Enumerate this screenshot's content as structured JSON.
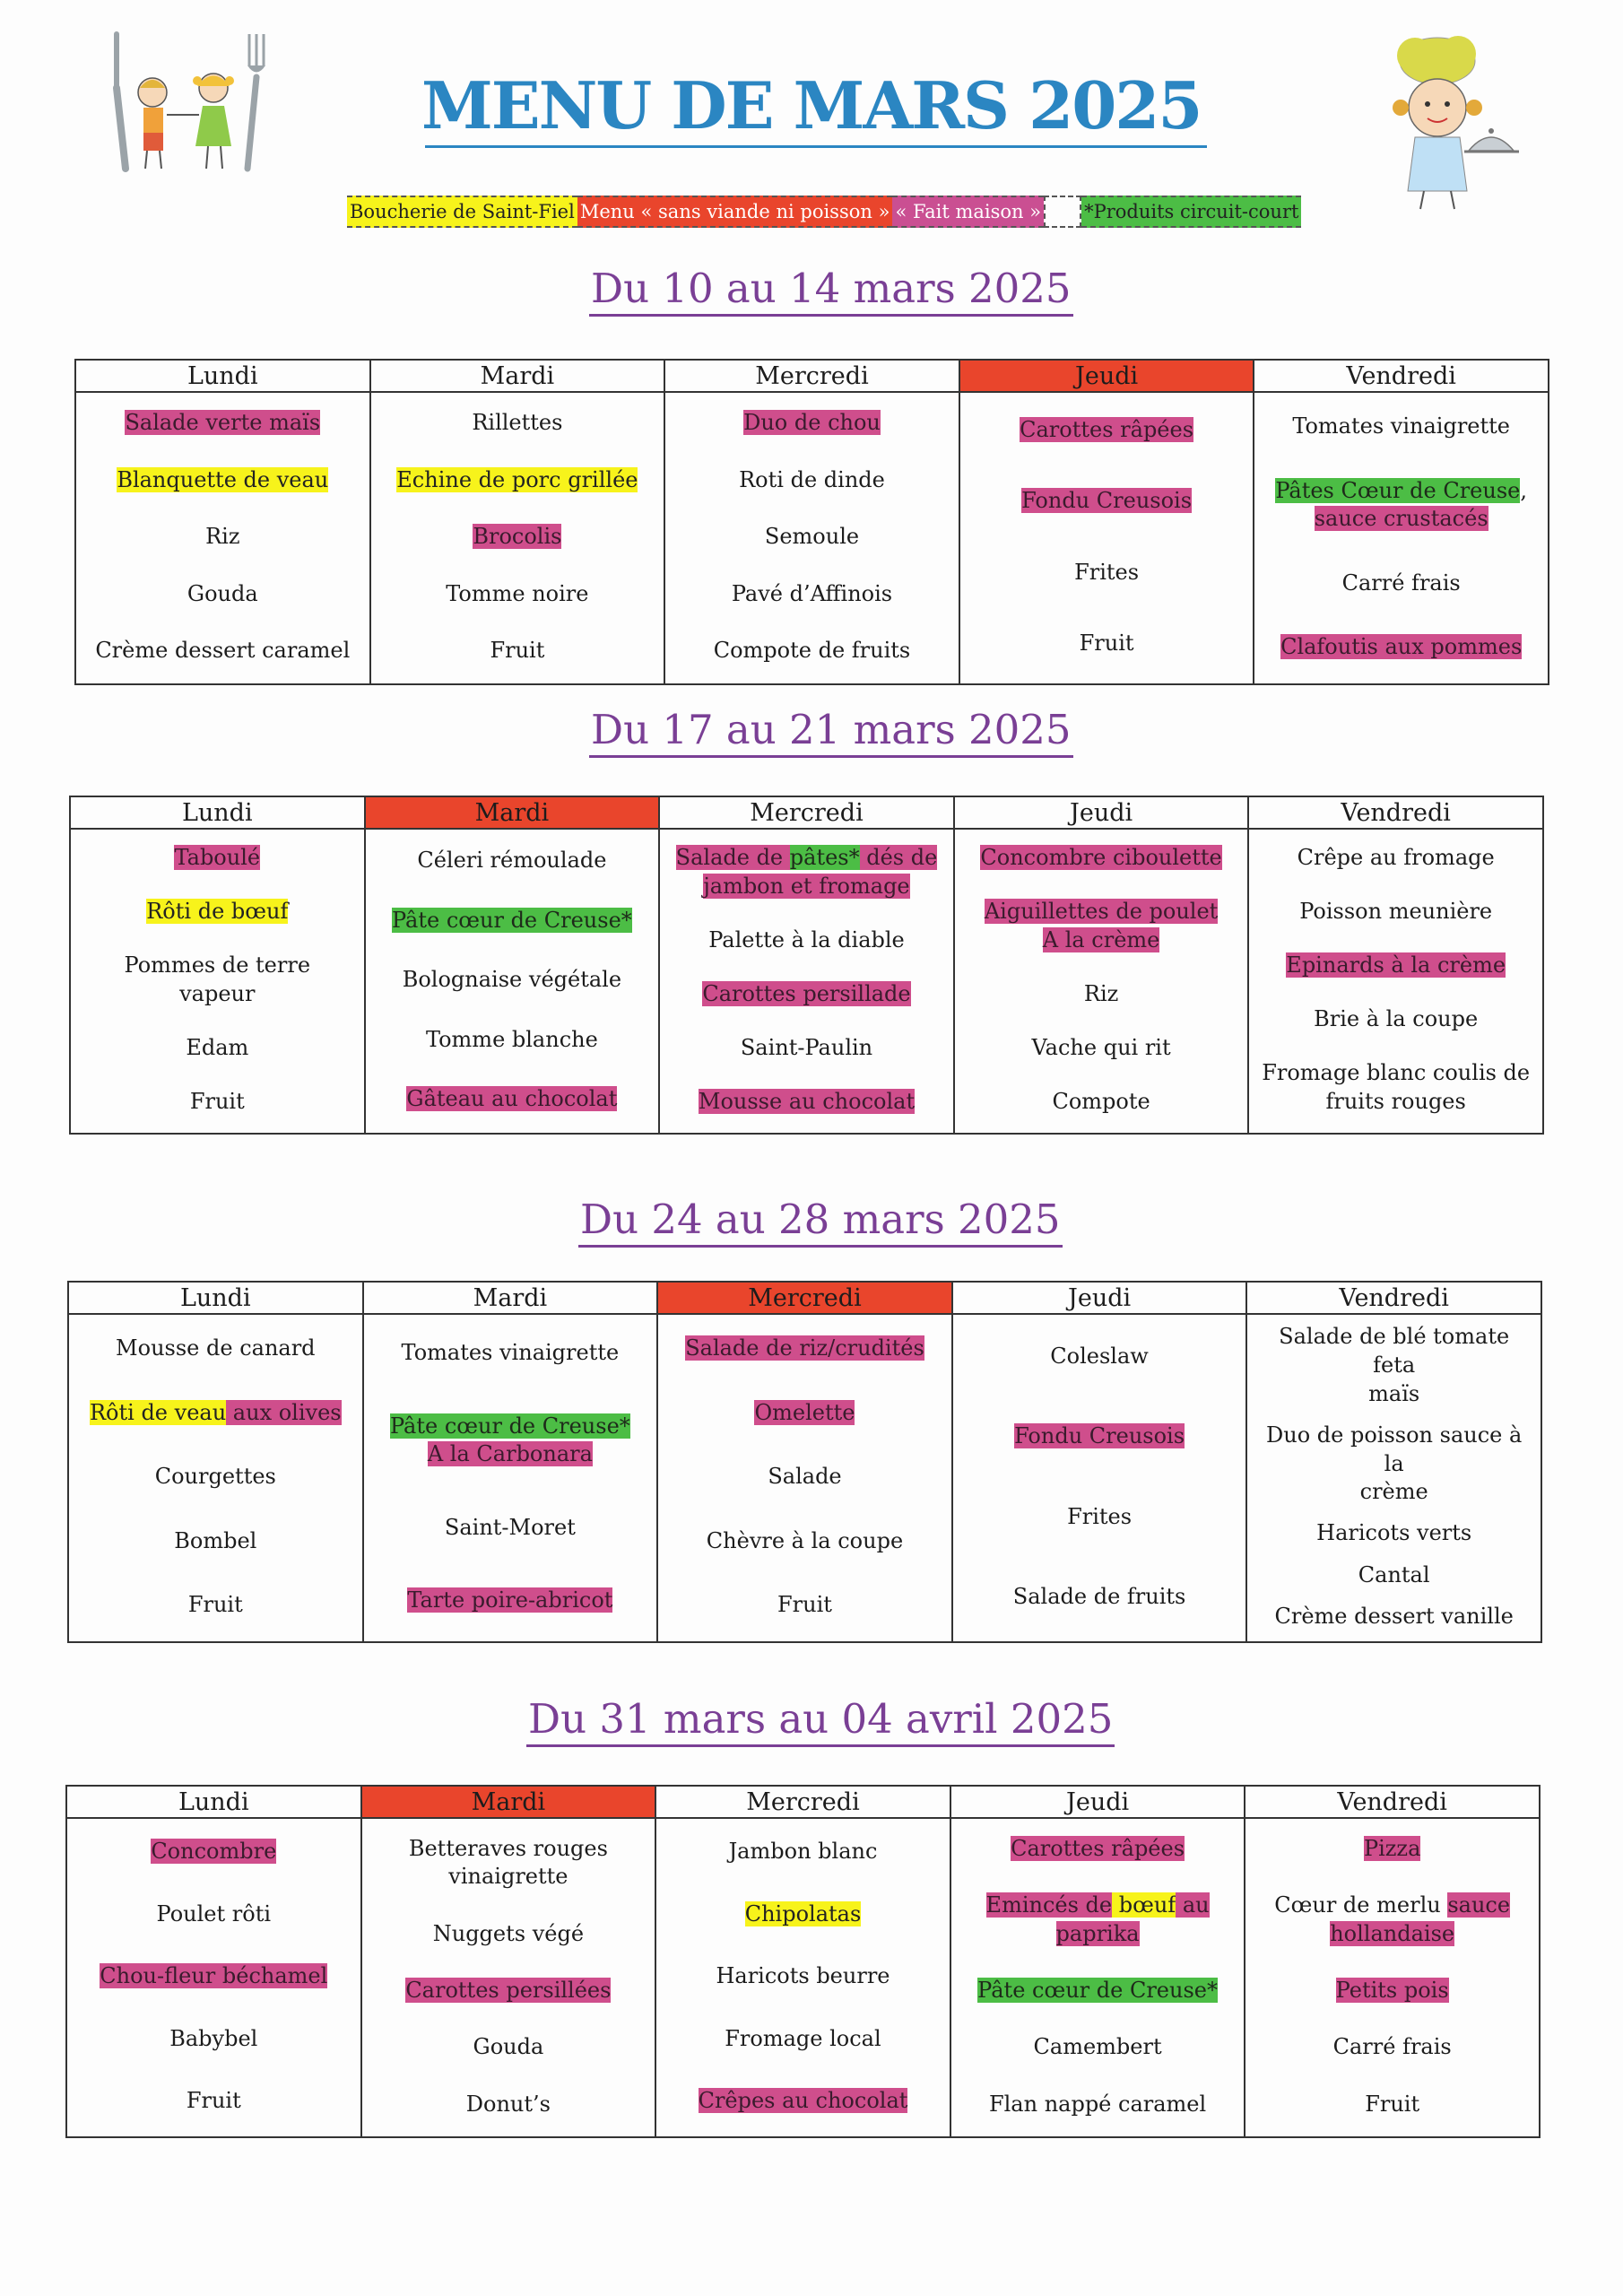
{
  "title": "MENU DE MARS 2025",
  "legend": {
    "yellow": "Boucherie de Saint-Fiel",
    "red": "Menu « sans viande ni poisson »",
    "pink": "« Fait maison »",
    "green": "*Produits circuit-court"
  },
  "colors": {
    "title": "#2b86c2",
    "week_title": "#7a3f95",
    "yellow": "#f7f31b",
    "red": "#e9452c",
    "pink": "#cf4e8c",
    "green": "#4cbd45"
  },
  "illustrations": {
    "left": "children-with-fork-drawing",
    "right": "chef-child-with-cloche-drawing"
  },
  "weeks": [
    {
      "title": "Du 10 au 14 mars 2025",
      "days": [
        {
          "name": "Lundi",
          "veggie": false,
          "items": [
            [
              {
                "t": "Salade verte maïs",
                "h": "pink"
              }
            ],
            [
              {
                "t": "Blanquette de veau",
                "h": "yellow"
              }
            ],
            [
              {
                "t": "Riz"
              }
            ],
            [
              {
                "t": "Gouda"
              }
            ],
            [
              {
                "t": "Crème dessert caramel"
              }
            ]
          ]
        },
        {
          "name": "Mardi",
          "veggie": false,
          "items": [
            [
              {
                "t": "Rillettes"
              }
            ],
            [
              {
                "t": "Echine de porc grillée",
                "h": "yellow"
              }
            ],
            [
              {
                "t": "Brocolis",
                "h": "pink"
              }
            ],
            [
              {
                "t": "Tomme noire"
              }
            ],
            [
              {
                "t": "Fruit"
              }
            ]
          ]
        },
        {
          "name": "Mercredi",
          "veggie": false,
          "items": [
            [
              {
                "t": "Duo de chou",
                "h": "pink"
              }
            ],
            [
              {
                "t": "Roti de dinde"
              }
            ],
            [
              {
                "t": "Semoule"
              }
            ],
            [
              {
                "t": "Pavé d’Affinois"
              }
            ],
            [
              {
                "t": "Compote de fruits"
              }
            ]
          ]
        },
        {
          "name": "Jeudi",
          "veggie": true,
          "items": [
            [
              {
                "t": "Carottes râpées",
                "h": "pink"
              }
            ],
            [
              {
                "t": "Fondu Creusois",
                "h": "pink"
              }
            ],
            [
              {
                "t": "Frites"
              }
            ],
            [
              {
                "t": "Fruit"
              }
            ]
          ]
        },
        {
          "name": "Vendredi",
          "veggie": false,
          "items": [
            [
              {
                "t": "Tomates vinaigrette"
              }
            ],
            [
              {
                "t": "Pâtes Cœur de Creuse",
                "h": "green"
              },
              {
                "t": ","
              },
              {
                "br": true
              },
              {
                "t": "sauce crustacés",
                "h": "pink"
              }
            ],
            [
              {
                "t": "Carré frais"
              }
            ],
            [
              {
                "t": "Clafoutis aux pommes",
                "h": "pink"
              }
            ]
          ]
        }
      ]
    },
    {
      "title": "Du 17 au 21 mars 2025",
      "days": [
        {
          "name": "Lundi",
          "veggie": false,
          "items": [
            [
              {
                "t": "Taboulé",
                "h": "pink"
              }
            ],
            [
              {
                "t": "Rôti de bœuf",
                "h": "yellow"
              }
            ],
            [
              {
                "t": "Pommes de terre"
              },
              {
                "br": true
              },
              {
                "t": "vapeur"
              }
            ],
            [
              {
                "t": "Edam"
              }
            ],
            [
              {
                "t": "Fruit"
              }
            ]
          ]
        },
        {
          "name": "Mardi",
          "veggie": true,
          "items": [
            [
              {
                "t": "Céleri rémoulade"
              }
            ],
            [
              {
                "t": "Pâte cœur de Creuse*",
                "h": "green"
              }
            ],
            [
              {
                "t": "Bolognaise végétale"
              }
            ],
            [
              {
                "t": "Tomme blanche"
              }
            ],
            [
              {
                "t": "Gâteau au chocolat",
                "h": "pink"
              }
            ]
          ]
        },
        {
          "name": "Mercredi",
          "veggie": false,
          "items": [
            [
              {
                "t": "Salade de ",
                "h": "pink"
              },
              {
                "t": "pâtes*",
                "h": "green"
              },
              {
                "t": " dés de",
                "h": "pink"
              },
              {
                "br": true
              },
              {
                "t": "jambon et fromage",
                "h": "pink"
              }
            ],
            [
              {
                "t": "Palette à la diable"
              }
            ],
            [
              {
                "t": "Carottes persillade",
                "h": "pink"
              }
            ],
            [
              {
                "t": "Saint-Paulin"
              }
            ],
            [
              {
                "t": "Mousse au chocolat",
                "h": "pink"
              }
            ]
          ]
        },
        {
          "name": "Jeudi",
          "veggie": false,
          "items": [
            [
              {
                "t": "Concombre ciboulette",
                "h": "pink"
              }
            ],
            [
              {
                "t": "Aiguillettes de poulet",
                "h": "pink"
              },
              {
                "br": true
              },
              {
                "t": "A la crème",
                "h": "pink"
              }
            ],
            [
              {
                "t": "Riz"
              }
            ],
            [
              {
                "t": "Vache qui rit"
              }
            ],
            [
              {
                "t": "Compote"
              }
            ]
          ]
        },
        {
          "name": "Vendredi",
          "veggie": false,
          "items": [
            [
              {
                "t": "Crêpe au fromage"
              }
            ],
            [
              {
                "t": "Poisson meunière"
              }
            ],
            [
              {
                "t": "Epinards à la crème",
                "h": "pink"
              }
            ],
            [
              {
                "t": "Brie à la coupe"
              }
            ],
            [
              {
                "t": "Fromage blanc coulis de"
              },
              {
                "br": true
              },
              {
                "t": "fruits rouges"
              }
            ]
          ]
        }
      ]
    },
    {
      "title": "Du 24 au 28 mars 2025",
      "days": [
        {
          "name": "Lundi",
          "veggie": false,
          "items": [
            [
              {
                "t": "Mousse de canard"
              }
            ],
            [
              {
                "t": "Rôti de veau",
                "h": "yellow"
              },
              {
                "t": " aux olives",
                "h": "pink"
              }
            ],
            [
              {
                "t": "Courgettes"
              }
            ],
            [
              {
                "t": "Bombel"
              }
            ],
            [
              {
                "t": "Fruit"
              }
            ]
          ]
        },
        {
          "name": "Mardi",
          "veggie": false,
          "items": [
            [
              {
                "t": "Tomates vinaigrette"
              }
            ],
            [
              {
                "t": "Pâte cœur de Creuse*",
                "h": "green"
              },
              {
                "br": true
              },
              {
                "t": "A la Carbonara",
                "h": "pink"
              }
            ],
            [
              {
                "t": "Saint-Moret"
              }
            ],
            [
              {
                "t": "Tarte poire-abricot",
                "h": "pink"
              }
            ]
          ]
        },
        {
          "name": "Mercredi",
          "veggie": true,
          "items": [
            [
              {
                "t": "Salade de riz/crudités",
                "h": "pink"
              }
            ],
            [
              {
                "t": "Omelette",
                "h": "pink"
              }
            ],
            [
              {
                "t": "Salade"
              }
            ],
            [
              {
                "t": "Chèvre à la coupe"
              }
            ],
            [
              {
                "t": "Fruit"
              }
            ]
          ]
        },
        {
          "name": "Jeudi",
          "veggie": false,
          "items": [
            [
              {
                "t": "Coleslaw"
              }
            ],
            [
              {
                "t": "Fondu Creusois",
                "h": "pink"
              }
            ],
            [
              {
                "t": "Frites"
              }
            ],
            [
              {
                "t": "Salade de fruits"
              }
            ]
          ]
        },
        {
          "name": "Vendredi",
          "veggie": false,
          "items": [
            [
              {
                "t": "Salade de blé tomate feta"
              },
              {
                "br": true
              },
              {
                "t": "maïs"
              }
            ],
            [
              {
                "t": "Duo de poisson sauce à la"
              },
              {
                "br": true
              },
              {
                "t": "crème"
              }
            ],
            [
              {
                "t": "Haricots verts"
              }
            ],
            [
              {
                "t": "Cantal"
              }
            ],
            [
              {
                "t": "Crème dessert vanille"
              }
            ]
          ]
        }
      ]
    },
    {
      "title": "Du 31 mars au 04 avril 2025",
      "days": [
        {
          "name": "Lundi",
          "veggie": false,
          "items": [
            [
              {
                "t": "Concombre",
                "h": "pink"
              }
            ],
            [
              {
                "t": "Poulet rôti"
              }
            ],
            [
              {
                "t": "Chou-fleur béchamel",
                "h": "pink"
              }
            ],
            [
              {
                "t": "Babybel"
              }
            ],
            [
              {
                "t": "Fruit"
              }
            ]
          ]
        },
        {
          "name": "Mardi",
          "veggie": true,
          "items": [
            [
              {
                "t": "Betteraves rouges"
              },
              {
                "br": true
              },
              {
                "t": "vinaigrette"
              }
            ],
            [
              {
                "t": "Nuggets végé"
              }
            ],
            [
              {
                "t": "Carottes persillées",
                "h": "pink"
              }
            ],
            [
              {
                "t": "Gouda"
              }
            ],
            [
              {
                "t": "Donut’s"
              }
            ]
          ]
        },
        {
          "name": "Mercredi",
          "veggie": false,
          "items": [
            [
              {
                "t": "Jambon blanc"
              }
            ],
            [
              {
                "t": "Chipolatas",
                "h": "yellow"
              }
            ],
            [
              {
                "t": "Haricots beurre"
              }
            ],
            [
              {
                "t": "Fromage local"
              }
            ],
            [
              {
                "t": "Crêpes au chocolat",
                "h": "pink"
              }
            ]
          ]
        },
        {
          "name": "Jeudi",
          "veggie": false,
          "items": [
            [
              {
                "t": "Carottes râpées",
                "h": "pink"
              }
            ],
            [
              {
                "t": "Emincés de",
                "h": "pink"
              },
              {
                "t": " bœuf",
                "h": "yellow"
              },
              {
                "t": " au",
                "h": "pink"
              },
              {
                "br": true
              },
              {
                "t": "paprika",
                "h": "pink"
              }
            ],
            [
              {
                "t": "Pâte cœur de Creuse*",
                "h": "green"
              }
            ],
            [
              {
                "t": "Camembert"
              }
            ],
            [
              {
                "t": "Flan nappé caramel"
              }
            ]
          ]
        },
        {
          "name": "Vendredi",
          "veggie": false,
          "items": [
            [
              {
                "t": "Pizza",
                "h": "pink"
              }
            ],
            [
              {
                "t": "Cœur de merlu "
              },
              {
                "t": "sauce",
                "h": "pink"
              },
              {
                "br": true
              },
              {
                "t": "hollandaise",
                "h": "pink"
              }
            ],
            [
              {
                "t": "Petits pois",
                "h": "pink"
              }
            ],
            [
              {
                "t": "Carré frais"
              }
            ],
            [
              {
                "t": "Fruit"
              }
            ]
          ]
        }
      ]
    }
  ]
}
